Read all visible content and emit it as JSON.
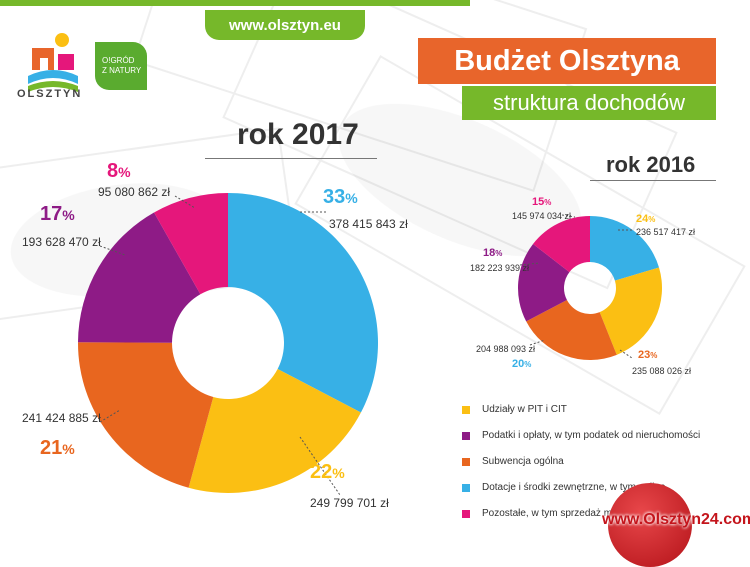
{
  "header": {
    "url": "www.olsztyn.eu",
    "city_logo_text": "OLSZTYN",
    "green_logo_text": [
      "O!GRÓD",
      "Z NATURY"
    ],
    "title": "Budżet  Olsztyna",
    "subtitle": "struktura dochodów"
  },
  "colors": {
    "pit_cit": "#fbbf13",
    "podatki": "#8e1b86",
    "subwencja": "#e8661f",
    "dotacje": "#37b0e6",
    "pozostale": "#e5177b",
    "orange_title": "#e8652b",
    "green": "#76b82a"
  },
  "chart_data": [
    {
      "type": "pie",
      "donut": true,
      "title": "rok 2017",
      "categories": [
        "Udziały w PIT i CIT",
        "Podatki i opłaty, w tym podatek od nieruchomości",
        "Subwencja ogólna",
        "Dotacje i środki zewnętrzne, w tym unijne",
        "Pozostałe, w tym sprzedaż majątku"
      ],
      "values": [
        249799701,
        193628470,
        241424885,
        378415843,
        95080862
      ],
      "percent_labels": [
        "22%",
        "17%",
        "21%",
        "33%",
        "8%"
      ],
      "value_labels": [
        "249 799 701 zł",
        "193 628 470 zł",
        "241 424 885 zł",
        "378 415 843 zł",
        "95 080 862 zł"
      ]
    },
    {
      "type": "pie",
      "donut": true,
      "title": "rok 2016",
      "categories": [
        "Udziały w PIT i CIT",
        "Podatki i opłaty, w tym podatek od nieruchomości",
        "Subwencja ogólna",
        "Dotacje i środki zewnętrzne, w tym unijne",
        "Pozostałe, w tym sprzedaż majątku"
      ],
      "values": [
        236517417,
        182223939,
        235088026,
        204988093,
        145974034
      ],
      "percent_labels": [
        "24%",
        "18%",
        "23%",
        "20%",
        "15%"
      ],
      "value_labels": [
        "236 517 417 zł",
        "182 223 939 zł",
        "235 088 026 zł",
        "204 988 093 zł",
        "145 974 034 zł"
      ]
    }
  ],
  "legend": [
    {
      "label": "Udziały w PIT i CIT",
      "color": "#fbbf13"
    },
    {
      "label": "Podatki i opłaty, w tym podatek od nieruchomości",
      "color": "#8e1b86"
    },
    {
      "label": "Subwencja ogólna",
      "color": "#e8661f"
    },
    {
      "label": "Dotacje i środki zewnętrzne, w tym unijne",
      "color": "#37b0e6"
    },
    {
      "label": "Pozostałe, w tym sprzedaż majątku",
      "color": "#e5177b"
    }
  ],
  "watermark": "www.Olsztyn24.com"
}
